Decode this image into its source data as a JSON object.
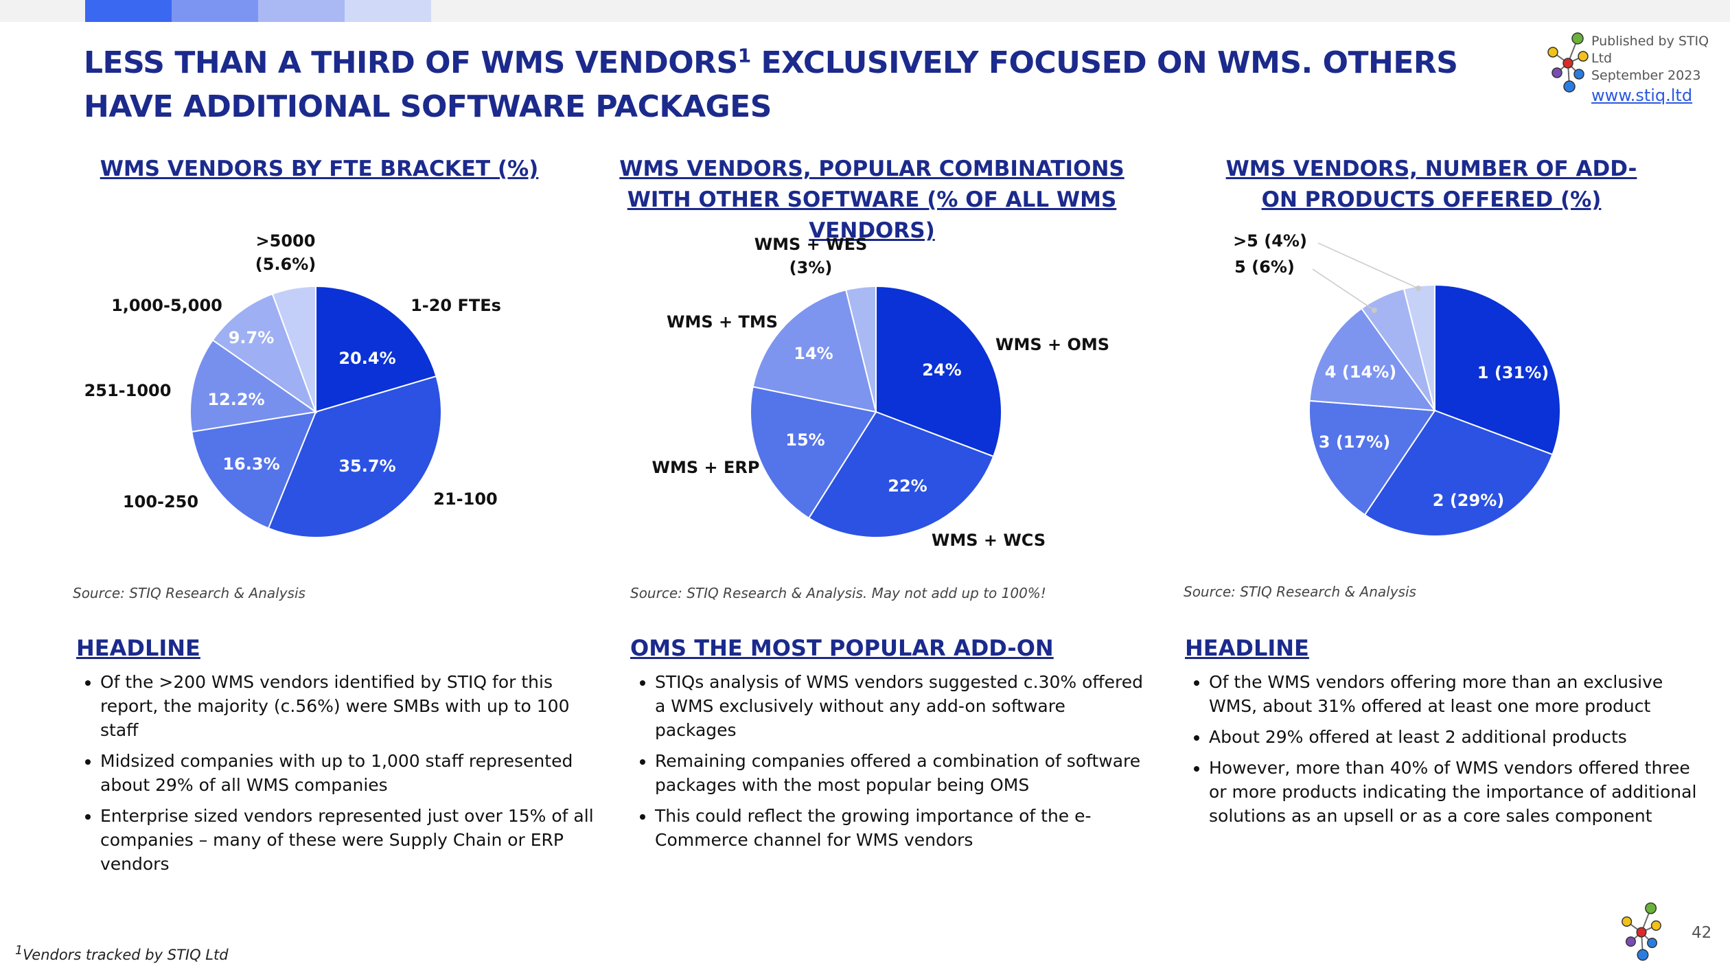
{
  "page": {
    "title_part1": "LESS THAN A THIRD OF WMS VENDORS",
    "title_sup": "1",
    "title_part2": " EXCLUSIVELY FOCUSED ON WMS. OTHERS HAVE ADDITIONAL SOFTWARE PACKAGES",
    "page_number": "42",
    "footnote_sup": "1",
    "footnote": "Vendors tracked by STIQ Ltd",
    "accent_colors": [
      "#3a68f0",
      "#7d95f2",
      "#aab8f4",
      "#d0d9f8"
    ]
  },
  "publisher": {
    "line1": "Published by STIQ Ltd",
    "line2": "September 2023",
    "link": "www.stiq.ltd",
    "logo_icon": "stiq-molecule-logo-icon"
  },
  "chart_data": [
    {
      "type": "pie",
      "title": "WMS VENDORS BY FTE BRACKET (%)",
      "categories": [
        "1-20 FTEs",
        "21-100",
        "100-250",
        "251-1000",
        "1,000-5,000",
        ">5000"
      ],
      "values": [
        20.4,
        35.7,
        16.3,
        12.2,
        9.7,
        5.6
      ],
      "slice_labels": [
        "20.4%",
        "35.7%",
        "16.3%",
        "12.2%",
        "9.7%",
        ""
      ],
      "outer_labels": [
        "1-20 FTEs",
        "21-100",
        "100-250",
        "251-1000",
        "1,000-5,000",
        ">5000|(5.6%)"
      ],
      "colors": [
        "#0a32d6",
        "#2b52e3",
        "#5474ea",
        "#7790ee",
        "#9eb0f3",
        "#c3cff8"
      ],
      "source": "Source: STIQ Research & Analysis"
    },
    {
      "type": "pie",
      "title": "WMS VENDORS, POPULAR COMBINATIONS WITH OTHER SOFTWARE (% OF ALL WMS VENDORS)",
      "categories": [
        "WMS + OMS",
        "WMS + WCS",
        "WMS + ERP",
        "WMS + TMS",
        "WMS + WES"
      ],
      "values": [
        24,
        22,
        15,
        14,
        3
      ],
      "slice_labels": [
        "24%",
        "22%",
        "15%",
        "14%",
        ""
      ],
      "outer_labels": [
        "WMS + OMS",
        "WMS + WCS",
        "WMS + ERP",
        "WMS + TMS",
        "WMS + WES|(3%)"
      ],
      "colors": [
        "#0a32d6",
        "#2b52e3",
        "#5474ea",
        "#7d95ef",
        "#a9b9f4"
      ],
      "source": "Source: STIQ Research & Analysis. May not add up to 100%!"
    },
    {
      "type": "pie",
      "title": "WMS VENDORS, NUMBER OF ADD-ON PRODUCTS OFFERED (%)",
      "categories": [
        "1",
        "2",
        "3",
        "4",
        "5",
        ">5"
      ],
      "values": [
        31,
        29,
        17,
        14,
        6,
        4
      ],
      "slice_labels": [
        "1 (31%)",
        "2 (29%)",
        "3 (17%)",
        "4 (14%)",
        "",
        ""
      ],
      "outer_labels": [
        "",
        "",
        "",
        "",
        "5 (6%)",
        ">5 (4%)"
      ],
      "colors": [
        "#0a32d6",
        "#2b52e3",
        "#5474ea",
        "#7d95ef",
        "#a5b5f3",
        "#c6d1f8"
      ],
      "source": "Source: STIQ Research & Analysis"
    }
  ],
  "sections": [
    {
      "heading": "HEADLINE",
      "bullets": [
        "Of the >200 WMS vendors identified by STIQ for this report, the majority (c.56%) were SMBs with up to 100 staff",
        "Midsized companies with up to 1,000 staff represented about 29% of all WMS companies",
        "Enterprise sized vendors represented just over 15% of all companies – many of these were Supply Chain or ERP vendors"
      ]
    },
    {
      "heading": "OMS THE MOST POPULAR ADD-ON",
      "bullets": [
        "STIQs analysis of WMS vendors suggested c.30% offered a WMS exclusively without any add-on software packages",
        "Remaining companies offered a combination of software packages with the most popular being OMS",
        "This could reflect the growing importance of the e-Commerce channel for WMS vendors"
      ]
    },
    {
      "heading": "HEADLINE",
      "bullets": [
        "Of the WMS vendors offering more than an exclusive WMS, about 31% offered at least one more product",
        "About 29% offered at least 2 additional products",
        "However, more than 40% of WMS vendors offered three or more products indicating the importance of additional solutions as an upsell or as a core sales component"
      ]
    }
  ]
}
